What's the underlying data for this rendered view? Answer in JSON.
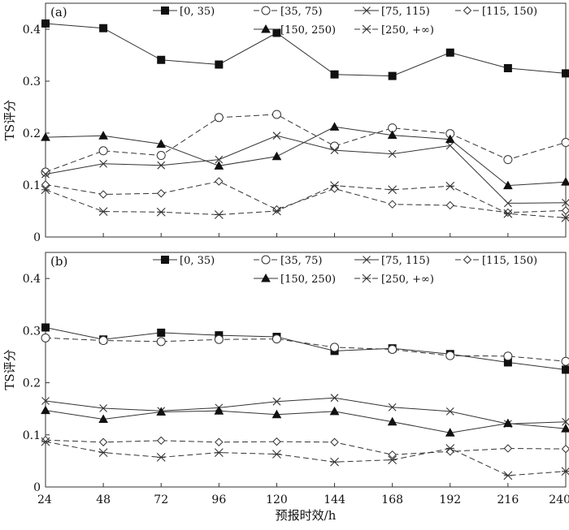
{
  "chart_data": [
    {
      "type": "line",
      "panel_label": "(a)",
      "title": "",
      "xlabel": "",
      "ylabel": "TS评分",
      "xlim": [
        24,
        240
      ],
      "ylim": [
        0,
        0.45
      ],
      "yticks": [
        "0",
        "0.1",
        "0.2",
        "0.3",
        "0.4"
      ],
      "x": [
        24,
        48,
        72,
        96,
        120,
        144,
        168,
        192,
        216,
        240
      ],
      "series": [
        {
          "name": "[0, 35)",
          "marker": "filled-square",
          "dash": "solid",
          "values": [
            0.411,
            0.402,
            0.341,
            0.332,
            0.393,
            0.313,
            0.31,
            0.355,
            0.325,
            0.315
          ]
        },
        {
          "name": "[35, 75)",
          "marker": "open-circle",
          "dash": "dashed",
          "values": [
            0.125,
            0.166,
            0.157,
            0.23,
            0.236,
            0.175,
            0.21,
            0.199,
            0.149,
            0.182
          ]
        },
        {
          "name": "[75, 115)",
          "marker": "x-cross",
          "dash": "solid",
          "values": [
            0.121,
            0.141,
            0.138,
            0.149,
            0.195,
            0.167,
            0.16,
            0.176,
            0.065,
            0.066
          ]
        },
        {
          "name": "[115, 150)",
          "marker": "open-diamond",
          "dash": "dashed",
          "values": [
            0.101,
            0.082,
            0.084,
            0.107,
            0.053,
            0.093,
            0.063,
            0.061,
            0.047,
            0.051
          ]
        },
        {
          "name": "[150, 250)",
          "marker": "filled-triangle",
          "dash": "solid",
          "values": [
            0.192,
            0.195,
            0.179,
            0.137,
            0.155,
            0.212,
            0.196,
            0.188,
            0.099,
            0.106
          ]
        },
        {
          "name": "[250, +∞)",
          "marker": "asterisk",
          "dash": "dashed",
          "values": [
            0.091,
            0.049,
            0.048,
            0.043,
            0.05,
            0.099,
            0.091,
            0.098,
            0.045,
            0.037
          ]
        }
      ]
    },
    {
      "type": "line",
      "panel_label": "(b)",
      "title": "",
      "xlabel": "预报时效/h",
      "ylabel": "TS评分",
      "xlim": [
        24,
        240
      ],
      "ylim": [
        0,
        0.45
      ],
      "yticks": [
        "0",
        "0.1",
        "0.2",
        "0.3",
        "0.4"
      ],
      "xticks": [
        "24",
        "48",
        "72",
        "96",
        "120",
        "144",
        "168",
        "192",
        "216",
        "240"
      ],
      "x": [
        24,
        48,
        72,
        96,
        120,
        144,
        168,
        192,
        216,
        240
      ],
      "series": [
        {
          "name": "[0, 35)",
          "marker": "filled-square",
          "dash": "solid",
          "values": [
            0.306,
            0.283,
            0.296,
            0.291,
            0.288,
            0.261,
            0.266,
            0.255,
            0.239,
            0.225
          ]
        },
        {
          "name": "[35, 75)",
          "marker": "open-circle",
          "dash": "dashed",
          "values": [
            0.286,
            0.281,
            0.279,
            0.283,
            0.284,
            0.268,
            0.264,
            0.252,
            0.251,
            0.241
          ]
        },
        {
          "name": "[75, 115)",
          "marker": "x-cross",
          "dash": "solid",
          "values": [
            0.165,
            0.151,
            0.146,
            0.152,
            0.164,
            0.171,
            0.153,
            0.145,
            0.121,
            0.125
          ]
        },
        {
          "name": "[115, 150)",
          "marker": "open-diamond",
          "dash": "dashed",
          "values": [
            0.09,
            0.086,
            0.089,
            0.086,
            0.087,
            0.086,
            0.062,
            0.068,
            0.074,
            0.073
          ]
        },
        {
          "name": "[150, 250)",
          "marker": "filled-triangle",
          "dash": "solid",
          "values": [
            0.147,
            0.13,
            0.144,
            0.146,
            0.139,
            0.145,
            0.125,
            0.104,
            0.122,
            0.112
          ]
        },
        {
          "name": "[250, +∞)",
          "marker": "asterisk",
          "dash": "dashed",
          "values": [
            0.087,
            0.066,
            0.057,
            0.066,
            0.063,
            0.048,
            0.052,
            0.074,
            0.022,
            0.03
          ]
        }
      ]
    }
  ],
  "colors": {
    "line": "#333333",
    "frame": "#333333",
    "marker_fill": "#111111",
    "background": "#ffffff"
  }
}
